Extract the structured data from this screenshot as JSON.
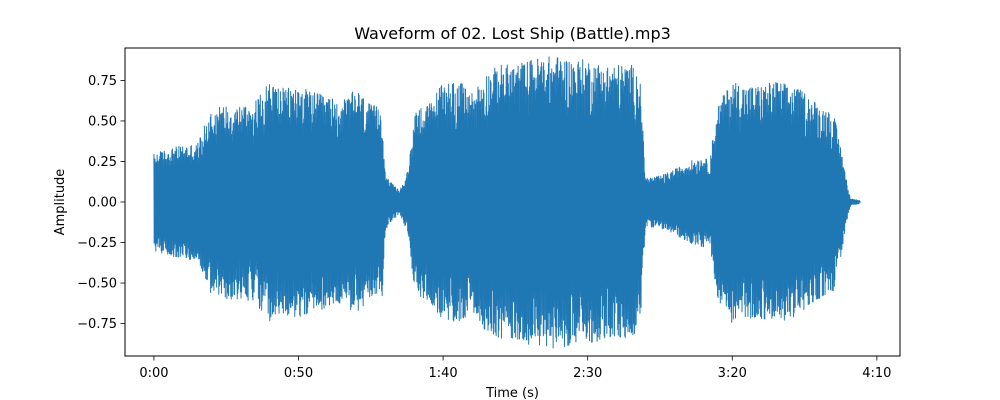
{
  "chart_data": {
    "type": "line",
    "title": "Waveform of 02. Lost Ship (Battle).mp3",
    "xlabel": "Time (s)",
    "ylabel": "Amplitude",
    "x_unit": "seconds",
    "xlim": [
      -10,
      258
    ],
    "ylim": [
      -0.95,
      0.95
    ],
    "x_ticks": [
      {
        "value": 0,
        "label": "0:00"
      },
      {
        "value": 50,
        "label": "0:50"
      },
      {
        "value": 100,
        "label": "1:40"
      },
      {
        "value": 150,
        "label": "2:30"
      },
      {
        "value": 200,
        "label": "3:20"
      },
      {
        "value": 250,
        "label": "4:10"
      }
    ],
    "y_ticks": [
      {
        "value": -0.75,
        "label": "−0.75"
      },
      {
        "value": -0.5,
        "label": "−0.50"
      },
      {
        "value": -0.25,
        "label": "−0.25"
      },
      {
        "value": 0.0,
        "label": "0.00"
      },
      {
        "value": 0.25,
        "label": "0.25"
      },
      {
        "value": 0.5,
        "label": "0.50"
      },
      {
        "value": 0.75,
        "label": "0.75"
      }
    ],
    "grid": false,
    "legend": false,
    "color": "#1f77b4",
    "envelope": {
      "time": [
        0,
        5,
        10,
        15,
        20,
        25,
        30,
        35,
        40,
        45,
        50,
        55,
        60,
        65,
        70,
        75,
        79,
        80,
        82,
        85,
        88,
        90,
        92,
        95,
        100,
        105,
        110,
        115,
        120,
        125,
        130,
        135,
        140,
        145,
        150,
        155,
        160,
        165,
        168,
        170,
        175,
        180,
        185,
        190,
        192,
        195,
        200,
        205,
        210,
        215,
        220,
        225,
        230,
        235,
        238,
        240,
        241,
        244
      ],
      "amplitude": [
        0.3,
        0.33,
        0.35,
        0.36,
        0.58,
        0.6,
        0.6,
        0.62,
        0.75,
        0.7,
        0.72,
        0.68,
        0.65,
        0.62,
        0.7,
        0.6,
        0.58,
        0.18,
        0.12,
        0.07,
        0.2,
        0.55,
        0.6,
        0.6,
        0.75,
        0.75,
        0.68,
        0.8,
        0.85,
        0.85,
        0.88,
        0.9,
        0.9,
        0.88,
        0.88,
        0.85,
        0.85,
        0.85,
        0.8,
        0.15,
        0.16,
        0.2,
        0.25,
        0.28,
        0.25,
        0.6,
        0.75,
        0.72,
        0.72,
        0.75,
        0.72,
        0.68,
        0.6,
        0.55,
        0.3,
        0.08,
        0.02,
        0.01
      ]
    }
  }
}
